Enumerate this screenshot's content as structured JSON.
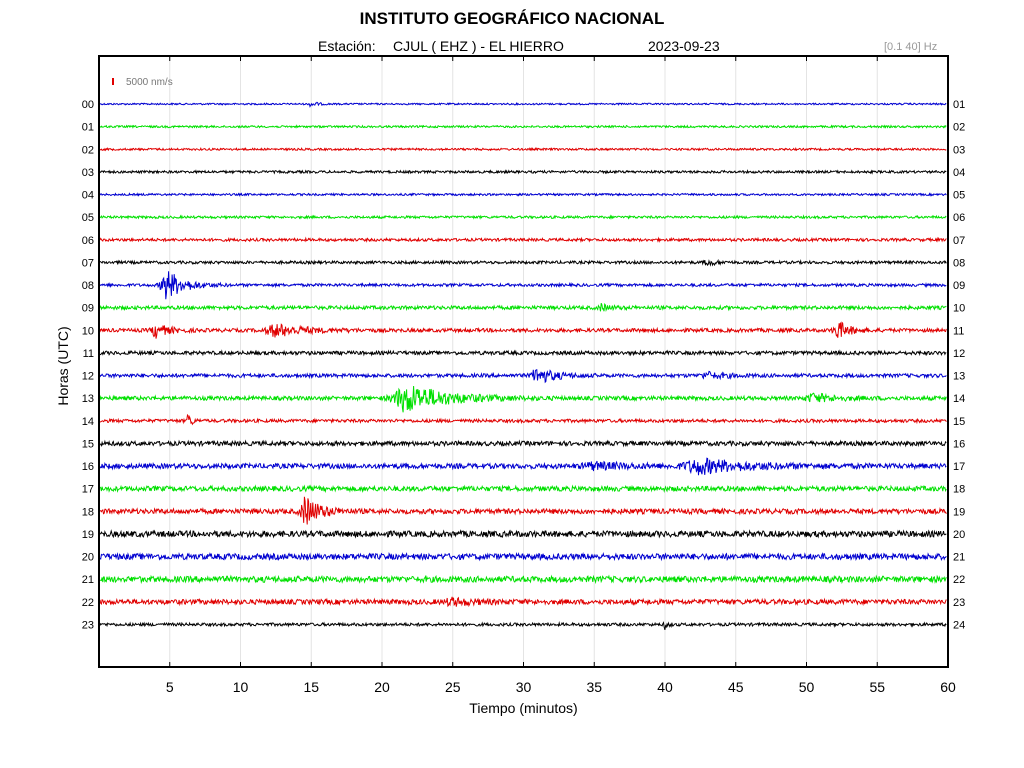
{
  "title": "INSTITUTO GEOGRÁFICO NACIONAL",
  "station_label": "Estación:",
  "station": "CJUL ( EHZ ) - EL HIERRO",
  "date": "2023-09-23",
  "band": "[0.1 40] Hz",
  "scale_label": "5000 nm/s",
  "colors": {
    "blue": "#0000d0",
    "green": "#00e000",
    "red": "#e00000",
    "black": "#000000",
    "scale": "#e00000"
  },
  "chart_data": {
    "type": "line",
    "title": "INSTITUTO GEOGRÁFICO NACIONAL",
    "xlabel": "Tiempo (minutos)",
    "ylabel": "Horas (UTC)",
    "xlim": [
      0,
      60
    ],
    "x_ticks": [
      "5",
      "10",
      "15",
      "20",
      "25",
      "30",
      "35",
      "40",
      "45",
      "50",
      "55",
      "60"
    ],
    "left_labels": [
      "00",
      "01",
      "02",
      "03",
      "04",
      "05",
      "06",
      "07",
      "08",
      "09",
      "10",
      "11",
      "12",
      "13",
      "14",
      "15",
      "16",
      "17",
      "18",
      "19",
      "20",
      "21",
      "22",
      "23"
    ],
    "right_labels": [
      "01",
      "02",
      "03",
      "04",
      "05",
      "06",
      "07",
      "08",
      "09",
      "10",
      "11",
      "12",
      "13",
      "14",
      "15",
      "16",
      "17",
      "18",
      "19",
      "20",
      "21",
      "22",
      "23",
      "24"
    ],
    "color_cycle": [
      "blue",
      "green",
      "red",
      "black"
    ],
    "series": [
      {
        "hour": 0,
        "noise": 0.8,
        "events": [
          {
            "minute": 15.0,
            "amplitude": 3,
            "duration": 0.5
          }
        ]
      },
      {
        "hour": 1,
        "noise": 1.0,
        "events": []
      },
      {
        "hour": 2,
        "noise": 1.0,
        "events": []
      },
      {
        "hour": 3,
        "noise": 1.2,
        "events": []
      },
      {
        "hour": 4,
        "noise": 1.0,
        "events": []
      },
      {
        "hour": 5,
        "noise": 1.2,
        "events": []
      },
      {
        "hour": 6,
        "noise": 1.4,
        "events": []
      },
      {
        "hour": 7,
        "noise": 1.4,
        "events": [
          {
            "minute": 43.0,
            "amplitude": 3,
            "duration": 0.8
          }
        ]
      },
      {
        "hour": 8,
        "noise": 1.4,
        "events": [
          {
            "minute": 4.8,
            "amplitude": 15,
            "duration": 1.5
          }
        ]
      },
      {
        "hour": 9,
        "noise": 1.8,
        "events": [
          {
            "minute": 35.5,
            "amplitude": 3,
            "duration": 0.8
          }
        ]
      },
      {
        "hour": 10,
        "noise": 1.8,
        "events": [
          {
            "minute": 4.0,
            "amplitude": 7,
            "duration": 1.0
          },
          {
            "minute": 12.5,
            "amplitude": 6,
            "duration": 2.5
          },
          {
            "minute": 52.2,
            "amplitude": 9,
            "duration": 1.0
          }
        ]
      },
      {
        "hour": 11,
        "noise": 1.8,
        "events": []
      },
      {
        "hour": 12,
        "noise": 1.8,
        "events": [
          {
            "minute": 31.0,
            "amplitude": 8,
            "duration": 1.5
          },
          {
            "minute": 43.0,
            "amplitude": 3,
            "duration": 1.5
          }
        ]
      },
      {
        "hour": 13,
        "noise": 2.0,
        "events": [
          {
            "minute": 21.8,
            "amplitude": 14,
            "duration": 3.5
          },
          {
            "minute": 50.5,
            "amplitude": 4,
            "duration": 2.0
          }
        ]
      },
      {
        "hour": 14,
        "noise": 1.6,
        "events": [
          {
            "minute": 6.3,
            "amplitude": 8,
            "duration": 0.3
          }
        ]
      },
      {
        "hour": 15,
        "noise": 2.2,
        "events": []
      },
      {
        "hour": 16,
        "noise": 2.5,
        "events": [
          {
            "minute": 42.5,
            "amplitude": 7,
            "duration": 4.0
          },
          {
            "minute": 35.0,
            "amplitude": 3,
            "duration": 3.0
          }
        ]
      },
      {
        "hour": 17,
        "noise": 2.5,
        "events": []
      },
      {
        "hour": 18,
        "noise": 2.5,
        "events": [
          {
            "minute": 14.6,
            "amplitude": 14,
            "duration": 1.3
          }
        ]
      },
      {
        "hour": 19,
        "noise": 3.0,
        "events": []
      },
      {
        "hour": 20,
        "noise": 3.0,
        "events": []
      },
      {
        "hour": 21,
        "noise": 3.0,
        "events": []
      },
      {
        "hour": 22,
        "noise": 2.5,
        "events": [
          {
            "minute": 25.0,
            "amplitude": 3,
            "duration": 2.0
          }
        ]
      },
      {
        "hour": 23,
        "noise": 1.5,
        "events": [
          {
            "minute": 40.0,
            "amplitude": 4,
            "duration": 0.3
          }
        ]
      }
    ]
  }
}
